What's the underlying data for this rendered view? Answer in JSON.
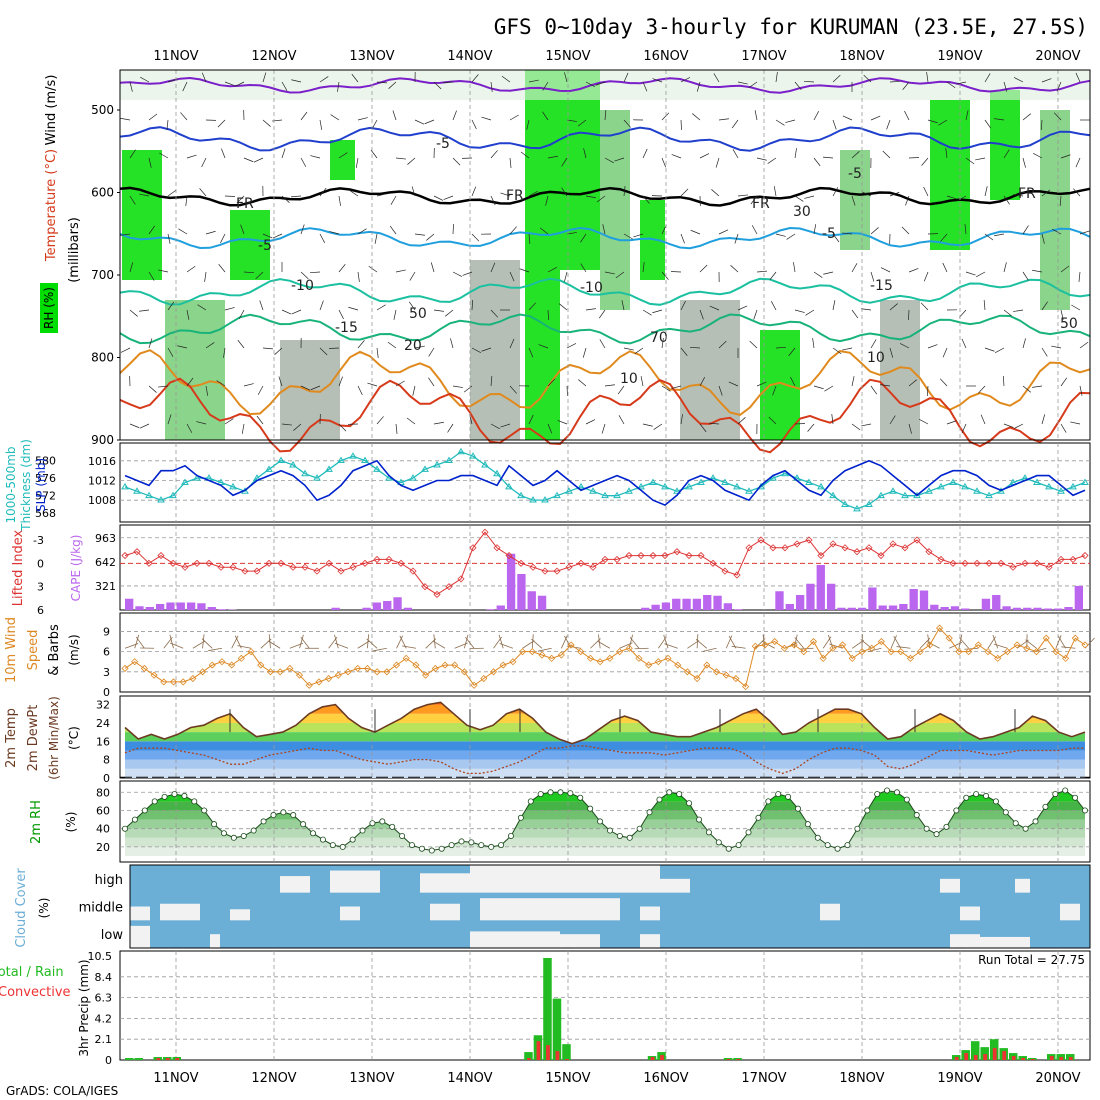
{
  "title": "GFS 0~10day 3-hourly for KURUMAN (23.5E, 27.5S)",
  "footer": "GrADS: COLA/IGES",
  "date_labels": [
    "11NOV",
    "12NOV",
    "13NOV",
    "14NOV",
    "15NOV",
    "16NOV",
    "17NOV",
    "18NOV",
    "19NOV",
    "20NOV"
  ],
  "colors": {
    "rh_green": "#00dd00",
    "rh_mid": "#77cc77",
    "rh_light": "#dfeedf",
    "rh_gray": "#a9b4a9",
    "slp": "#0022cc",
    "thickness": "#22bbbb",
    "lifted": "#dd3333",
    "cape": "#bb66ee",
    "wind10": "#dd8822",
    "temp_outline": "#6b3a22",
    "dewpt": "#aa4422",
    "rh2m": "#009900",
    "cloud_bg": "#6baed6",
    "cloud_fill": "#f2f2f2",
    "precip_total": "#22bb22",
    "precip_conv": "#ee3333"
  },
  "panels": {
    "upper": {
      "ylabel": "(millibars)",
      "legend_wind": "Wind (m/s)",
      "legend_temp": "Temperature (°C)",
      "legend_rh": "RH (%)",
      "y_ticks": [
        "500",
        "600",
        "700",
        "800",
        "900"
      ],
      "annotations": [
        "FR",
        "FR",
        "FR",
        "FR",
        "-5",
        "-5",
        "-5",
        "-5",
        "-10",
        "-10",
        "-15",
        "-15",
        "10",
        "10",
        "20",
        "30",
        "50",
        "50",
        "70"
      ]
    },
    "slp": {
      "ylabel_left": "1000-500mb",
      "ylabel_left2": "Thickness (dm)",
      "ylabel_right": "SLP (mb)",
      "left_ticks": [
        "580",
        "576",
        "572",
        "568"
      ],
      "right_ticks": [
        "1016",
        "1012",
        "1008"
      ]
    },
    "cape": {
      "ylabel_left": "Lifted Index",
      "ylabel_right": "CAPE (J/kg)",
      "left_ticks": [
        "-3",
        "0",
        "3",
        "6"
      ],
      "right_ticks": [
        "963",
        "642",
        "321"
      ]
    },
    "wind": {
      "ylabel_a": "10m Wind",
      "ylabel_b": "Speed",
      "ylabel_c": "& Barbs",
      "ylabel_unit": "(m/s)",
      "ticks": [
        "9",
        "6",
        "3",
        "0"
      ]
    },
    "temp": {
      "ylabel_a": "2m Temp",
      "ylabel_b": "2m DewPt",
      "ylabel_c": "(6hr Min/Max)",
      "ylabel_unit": "(°C)",
      "ticks": [
        "32",
        "24",
        "16",
        "8",
        "0"
      ]
    },
    "rh": {
      "ylabel": "2m RH",
      "ylabel_unit": "(%)",
      "ticks": [
        "80",
        "60",
        "40",
        "20"
      ]
    },
    "cloud": {
      "ylabel": "Cloud Cover",
      "ylabel_unit": "(%)",
      "levels": [
        "high",
        "middle",
        "low"
      ]
    },
    "precip": {
      "ylabel_a": "Total / Rain",
      "ylabel_b": "Convective",
      "ylabel_c": "3hr Precip (mm)",
      "ticks": [
        "10.5",
        "8.4",
        "6.3",
        "4.2",
        "2.1",
        "0"
      ],
      "run_total": "Run Total = 27.75"
    }
  },
  "chart_data": [
    {
      "type": "line",
      "title": "",
      "series": [
        {
          "name": "SLP",
          "axis": "right",
          "values": [
            1013,
            1012,
            1011,
            1014,
            1014,
            1015,
            1013,
            1012,
            1011,
            1009,
            1010,
            1012,
            1013,
            1014,
            1013,
            1011,
            1008,
            1009,
            1011,
            1014,
            1015,
            1016,
            1013,
            1011,
            1010,
            1011,
            1012,
            1012,
            1013,
            1013,
            1012,
            1011,
            1015,
            1013,
            1011,
            1012,
            1014,
            1012,
            1010,
            1011,
            1012,
            1013,
            1012,
            1010,
            1008,
            1007,
            1009,
            1012,
            1013,
            1012,
            1010,
            1009,
            1008,
            1011,
            1013,
            1014,
            1012,
            1010,
            1009,
            1012,
            1014,
            1015,
            1016,
            1015,
            1013,
            1011,
            1009,
            1011,
            1013,
            1014,
            1014,
            1013,
            1011,
            1010,
            1011,
            1012,
            1013,
            1013,
            1011,
            1009,
            1010
          ]
        },
        {
          "name": "Thickness",
          "axis": "left",
          "values": [
            574,
            573,
            572,
            571,
            572,
            575,
            576,
            576,
            575,
            574,
            573,
            576,
            578,
            580,
            579,
            577,
            576,
            578,
            580,
            581,
            580,
            578,
            576,
            575,
            576,
            578,
            579,
            580,
            582,
            581,
            579,
            577,
            574,
            572,
            571,
            571,
            572,
            573,
            574,
            573,
            572,
            572,
            573,
            574,
            575,
            574,
            573,
            574,
            575,
            576,
            575,
            574,
            573,
            574,
            576,
            577,
            576,
            575,
            574,
            572,
            570,
            569,
            570,
            572,
            573,
            572,
            572,
            573,
            574,
            575,
            574,
            573,
            572,
            573,
            575,
            576,
            575,
            574,
            573,
            574,
            575
          ]
        }
      ]
    },
    {
      "type": "bar",
      "title": "",
      "series": [
        {
          "name": "Lifted Index",
          "axis": "left",
          "values": [
            -1,
            -1.5,
            0,
            -1,
            0,
            0.5,
            0,
            0,
            0.5,
            0.5,
            1,
            1,
            0,
            0,
            0.5,
            0.5,
            1,
            0,
            1,
            0.5,
            0,
            -0.5,
            -0.5,
            0,
            1,
            3,
            4,
            3,
            2,
            -2,
            -4,
            -2,
            -1,
            0,
            0.5,
            1,
            1,
            0.5,
            0,
            0.5,
            -0.5,
            -0.5,
            -1,
            -1,
            -1,
            -1,
            -1.5,
            -1,
            -1,
            0,
            1,
            1.5,
            -2,
            -3,
            -2,
            -2,
            -2.5,
            -3,
            -1,
            -2.5,
            -2,
            -1.5,
            -2,
            -1,
            -2.5,
            -2,
            -3,
            -1.5,
            -0.5,
            0,
            0,
            0,
            0,
            0,
            0.5,
            0,
            0,
            0.5,
            -0.5,
            -0.5,
            -1
          ]
        },
        {
          "name": "CAPE",
          "axis": "right",
          "values": [
            150,
            50,
            40,
            80,
            100,
            100,
            100,
            90,
            40,
            10,
            5,
            0,
            0,
            0,
            0,
            0,
            0,
            0,
            0,
            0,
            30,
            0,
            0,
            30,
            100,
            120,
            170,
            30,
            0,
            0,
            0,
            0,
            0,
            0,
            0,
            10,
            60,
            750,
            480,
            250,
            190,
            0,
            0,
            0,
            0,
            0,
            0,
            0,
            0,
            0,
            30,
            70,
            100,
            150,
            150,
            150,
            200,
            190,
            90,
            10,
            0,
            0,
            0,
            250,
            80,
            200,
            350,
            600,
            350,
            30,
            30,
            30,
            300,
            60,
            60,
            80,
            280,
            260,
            70,
            40,
            50,
            20,
            0,
            150,
            200,
            50,
            30,
            30,
            30,
            20,
            20,
            40,
            321
          ]
        }
      ]
    },
    {
      "type": "line",
      "title": "",
      "series": [
        {
          "name": "10m Wind Speed",
          "values": [
            3.5,
            4.5,
            3.5,
            2.5,
            1.5,
            1.5,
            1.5,
            2,
            3,
            4,
            4.5,
            4,
            5,
            6,
            4,
            3,
            3,
            3.5,
            2.5,
            1,
            1.5,
            2,
            2.5,
            3,
            3.5,
            3.5,
            3,
            3,
            4,
            5,
            4,
            2.5,
            3.5,
            4,
            4,
            3,
            1,
            2,
            3,
            4,
            4.5,
            6,
            6,
            5.5,
            5,
            5.5,
            7,
            6,
            5,
            4.5,
            5,
            6,
            6.5,
            5,
            4,
            4.5,
            5,
            4,
            3,
            2,
            4,
            3,
            2.5,
            2,
            0.8,
            6.8,
            7,
            7.5,
            6.5,
            7,
            6,
            7.5,
            5,
            6.5,
            7,
            5,
            6,
            6.5,
            7.5,
            6,
            6,
            5,
            6,
            7,
            9.5,
            8,
            6,
            6,
            7,
            6,
            5,
            6,
            7,
            6.5,
            6,
            8,
            6,
            5,
            8,
            7
          ]
        }
      ]
    },
    {
      "type": "area",
      "title": "",
      "series": [
        {
          "name": "2m Temp",
          "values": [
            22,
            17,
            19,
            17,
            19,
            22,
            23,
            26,
            28,
            22,
            18,
            19,
            20,
            23,
            28,
            31,
            32,
            26,
            22,
            20,
            23,
            26,
            30,
            32,
            33,
            28,
            23,
            21,
            23,
            28,
            30,
            26,
            20,
            17,
            15,
            17,
            21,
            25,
            27,
            25,
            20,
            19,
            18,
            18,
            20,
            22,
            25,
            28,
            30,
            25,
            19,
            20,
            24,
            27,
            30,
            30,
            28,
            22,
            17,
            18,
            22,
            25,
            28,
            25,
            20,
            17,
            18,
            20,
            22,
            27,
            25,
            20,
            18,
            20
          ]
        },
        {
          "name": "2m DewPt",
          "values": [
            11,
            13,
            13,
            13,
            12,
            11,
            10,
            8,
            6,
            6,
            8,
            10,
            11,
            12,
            13,
            12,
            12,
            10,
            8,
            7,
            6,
            7,
            8,
            8,
            7,
            4,
            2,
            2,
            3,
            5,
            7,
            10,
            13,
            13,
            14,
            14,
            13,
            12,
            11,
            11,
            11,
            10,
            11,
            12,
            13,
            13,
            13,
            11,
            7,
            4,
            2,
            4,
            8,
            11,
            13,
            13,
            12,
            10,
            5,
            4,
            6,
            9,
            12,
            12,
            12,
            11,
            10,
            11,
            12,
            12,
            12,
            12,
            13,
            13
          ]
        }
      ]
    },
    {
      "type": "area",
      "title": "",
      "series": [
        {
          "name": "2m RH",
          "values": [
            40,
            50,
            60,
            70,
            75,
            78,
            76,
            70,
            60,
            45,
            35,
            30,
            32,
            38,
            48,
            55,
            58,
            55,
            45,
            35,
            28,
            22,
            20,
            28,
            38,
            46,
            48,
            42,
            32,
            22,
            18,
            16,
            18,
            22,
            26,
            25,
            22,
            20,
            22,
            32,
            52,
            70,
            78,
            80,
            80,
            79,
            74,
            62,
            48,
            38,
            32,
            30,
            40,
            58,
            72,
            80,
            78,
            68,
            50,
            36,
            25,
            18,
            22,
            36,
            52,
            70,
            78,
            75,
            62,
            45,
            30,
            22,
            18,
            22,
            40,
            60,
            78,
            82,
            80,
            72,
            55,
            40,
            34,
            42,
            60,
            74,
            78,
            76,
            70,
            58,
            46,
            40,
            48,
            64,
            78,
            82,
            74,
            60
          ]
        }
      ]
    },
    {
      "type": "bar",
      "title": "",
      "series": [
        {
          "name": "Total / Rain",
          "values": [
            0.2,
            0.2,
            0,
            0.3,
            0.3,
            0.3,
            0,
            0,
            0,
            0,
            0,
            0,
            0,
            0,
            0,
            0,
            0,
            0,
            0,
            0,
            0,
            0,
            0,
            0,
            0,
            0,
            0,
            0,
            0,
            0,
            0,
            0,
            0,
            0,
            0,
            0,
            0,
            0,
            0,
            0,
            0,
            0,
            0.8,
            2.5,
            10.3,
            6.2,
            1.6,
            0,
            0,
            0,
            0,
            0,
            0,
            0,
            0,
            0.4,
            0.8,
            0,
            0,
            0,
            0,
            0,
            0,
            0.2,
            0.2,
            0,
            0,
            0,
            0,
            0,
            0,
            0,
            0,
            0,
            0,
            0,
            0,
            0,
            0,
            0,
            0,
            0,
            0,
            0,
            0,
            0,
            0,
            0.5,
            1,
            1.9,
            1.3,
            2.1,
            1.2,
            0.7,
            0.4,
            0.2,
            0,
            0.6,
            0.6,
            0.6,
            0
          ]
        },
        {
          "name": "Convective",
          "values": [
            0,
            0,
            0,
            0.2,
            0.2,
            0.2,
            0,
            0,
            0,
            0,
            0,
            0,
            0,
            0,
            0,
            0,
            0,
            0,
            0,
            0,
            0,
            0,
            0,
            0,
            0,
            0,
            0,
            0,
            0,
            0,
            0,
            0,
            0,
            0,
            0,
            0,
            0,
            0,
            0,
            0,
            0,
            0,
            0.2,
            1.9,
            1.5,
            0.9,
            0.1,
            0,
            0,
            0,
            0,
            0,
            0,
            0,
            0,
            0.3,
            0.5,
            0,
            0,
            0,
            0,
            0,
            0,
            0.1,
            0.1,
            0,
            0,
            0,
            0,
            0,
            0,
            0,
            0,
            0,
            0,
            0,
            0,
            0,
            0,
            0,
            0,
            0,
            0,
            0,
            0,
            0,
            0,
            0.3,
            0.7,
            0.5,
            0.6,
            1.2,
            0.9,
            0.4,
            0.2,
            0.1,
            0,
            0.4,
            0.3,
            0.3,
            0
          ]
        }
      ]
    }
  ]
}
